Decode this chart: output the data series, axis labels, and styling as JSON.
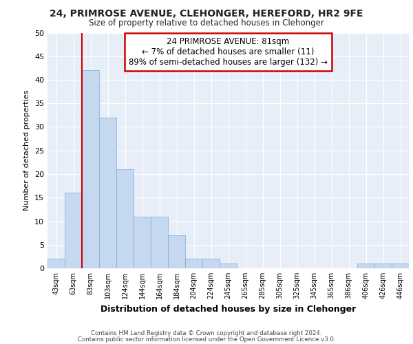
{
  "title_line1": "24, PRIMROSE AVENUE, CLEHONGER, HEREFORD, HR2 9FE",
  "title_line2": "Size of property relative to detached houses in Clehonger",
  "xlabel": "Distribution of detached houses by size in Clehonger",
  "ylabel": "Number of detached properties",
  "bar_labels": [
    "43sqm",
    "63sqm",
    "83sqm",
    "103sqm",
    "124sqm",
    "144sqm",
    "164sqm",
    "184sqm",
    "204sqm",
    "224sqm",
    "245sqm",
    "265sqm",
    "285sqm",
    "305sqm",
    "325sqm",
    "345sqm",
    "365sqm",
    "386sqm",
    "406sqm",
    "426sqm",
    "446sqm"
  ],
  "bar_values": [
    2,
    16,
    42,
    32,
    21,
    11,
    11,
    7,
    2,
    2,
    1,
    0,
    0,
    0,
    0,
    0,
    0,
    0,
    1,
    1,
    1
  ],
  "bar_color": "#c5d8f0",
  "bar_edge_color": "#7aadd4",
  "property_line_x": 2.0,
  "annotation_text": "24 PRIMROSE AVENUE: 81sqm\n← 7% of detached houses are smaller (11)\n89% of semi-detached houses are larger (132) →",
  "annotation_box_color": "#ffffff",
  "annotation_box_edge": "#cc0000",
  "vline_color": "#cc0000",
  "ylim": [
    0,
    50
  ],
  "yticks": [
    0,
    5,
    10,
    15,
    20,
    25,
    30,
    35,
    40,
    45,
    50
  ],
  "bg_color": "#e8eef8",
  "grid_color": "#ffffff",
  "footer_line1": "Contains HM Land Registry data © Crown copyright and database right 2024.",
  "footer_line2": "Contains public sector information licensed under the Open Government Licence v3.0."
}
